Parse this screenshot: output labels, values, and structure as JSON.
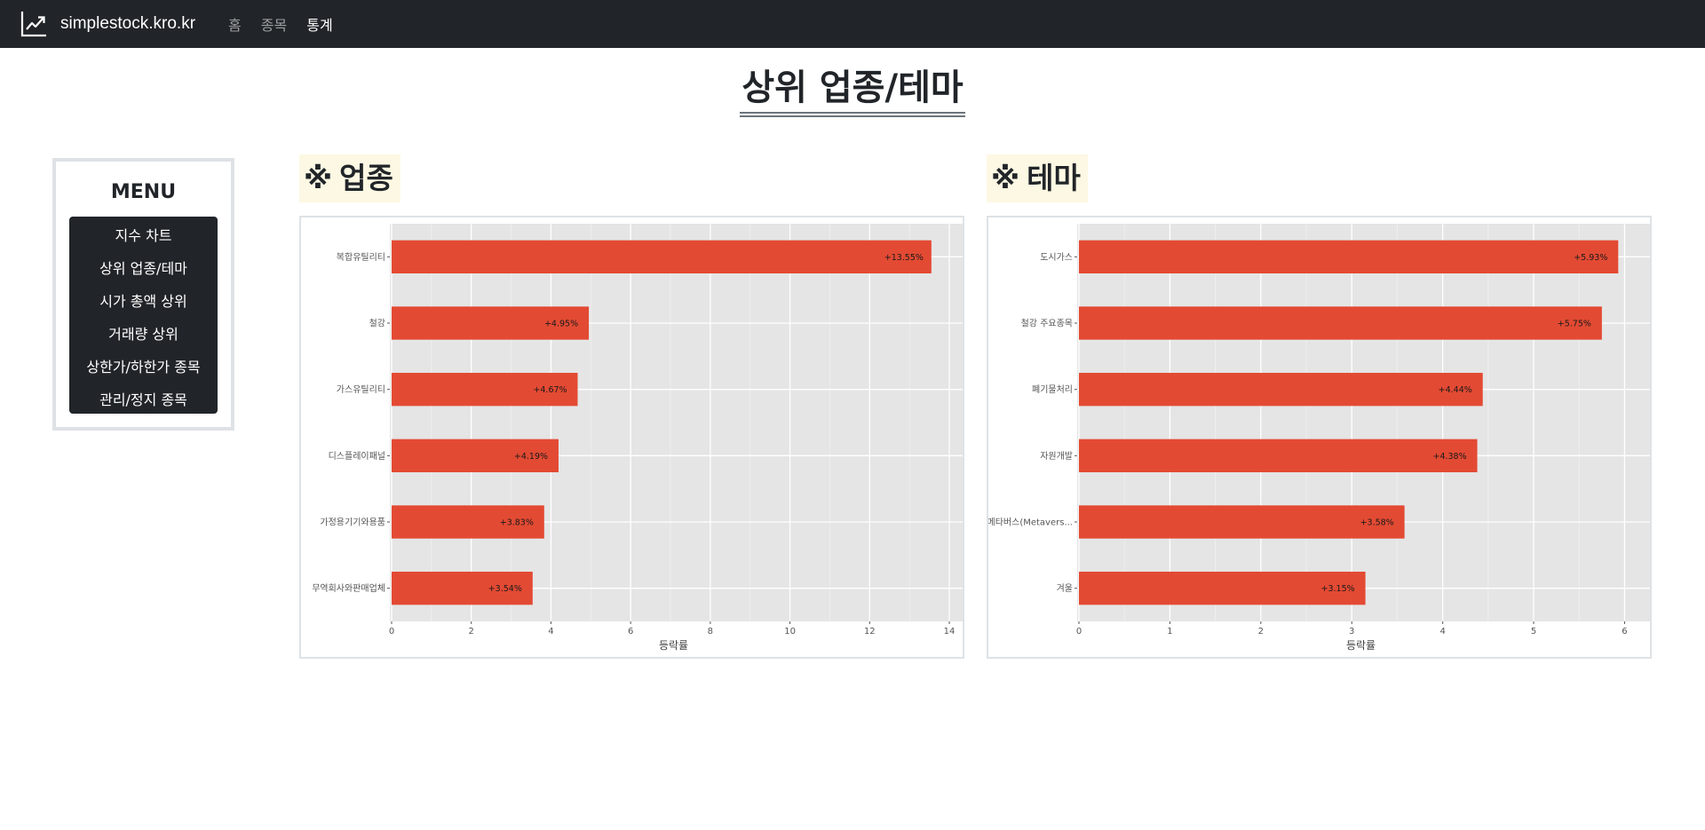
{
  "navbar": {
    "brand": "simplestock.kro.kr",
    "links": [
      {
        "label": "홈",
        "active": false
      },
      {
        "label": "종목",
        "active": false
      },
      {
        "label": "통계",
        "active": true
      }
    ]
  },
  "page_title": "상위 업종/테마",
  "menu": {
    "title": "MENU",
    "items": [
      "지수 차트",
      "상위 업종/테마",
      "시가 총액 상위",
      "거래량 상위",
      "상한가/하한가 종목",
      "관리/정지 종목"
    ]
  },
  "sections": {
    "industry": {
      "mark": "※",
      "label": "업종"
    },
    "theme": {
      "mark": "※",
      "label": "테마"
    }
  },
  "colors": {
    "bar": "#e34a33",
    "panel": "#e5e5e5",
    "section_bg": "#fcf8e3",
    "navbar": "#212529"
  },
  "chart_data": [
    {
      "type": "bar",
      "orientation": "horizontal",
      "categories": [
        "복합유틸리티",
        "철강",
        "가스유틸리티",
        "디스플레이패널",
        "가정용기기와용품",
        "무역회사와판매업체"
      ],
      "values": [
        13.55,
        4.95,
        4.67,
        4.19,
        3.83,
        3.54
      ],
      "value_labels": [
        "+13.55%",
        "+4.95%",
        "+4.67%",
        "+4.19%",
        "+3.83%",
        "+3.54%"
      ],
      "xlabel": "등락률",
      "xlim": [
        0,
        14.2
      ],
      "xticks": [
        0,
        2,
        4,
        6,
        8,
        10,
        12,
        14
      ],
      "grid": true
    },
    {
      "type": "bar",
      "orientation": "horizontal",
      "categories": [
        "도시가스",
        "철강 주요종목",
        "폐기물처리",
        "자원개발",
        "메타버스(Metavers...",
        "겨울"
      ],
      "values": [
        5.93,
        5.75,
        4.44,
        4.38,
        3.58,
        3.15
      ],
      "value_labels": [
        "+5.93%",
        "+5.75%",
        "+4.44%",
        "+4.38%",
        "+3.58%",
        "+3.15%"
      ],
      "xlabel": "등락률",
      "xlim": [
        0,
        6.22
      ],
      "xticks": [
        0,
        1,
        2,
        3,
        4,
        5,
        6
      ],
      "grid": true
    }
  ]
}
